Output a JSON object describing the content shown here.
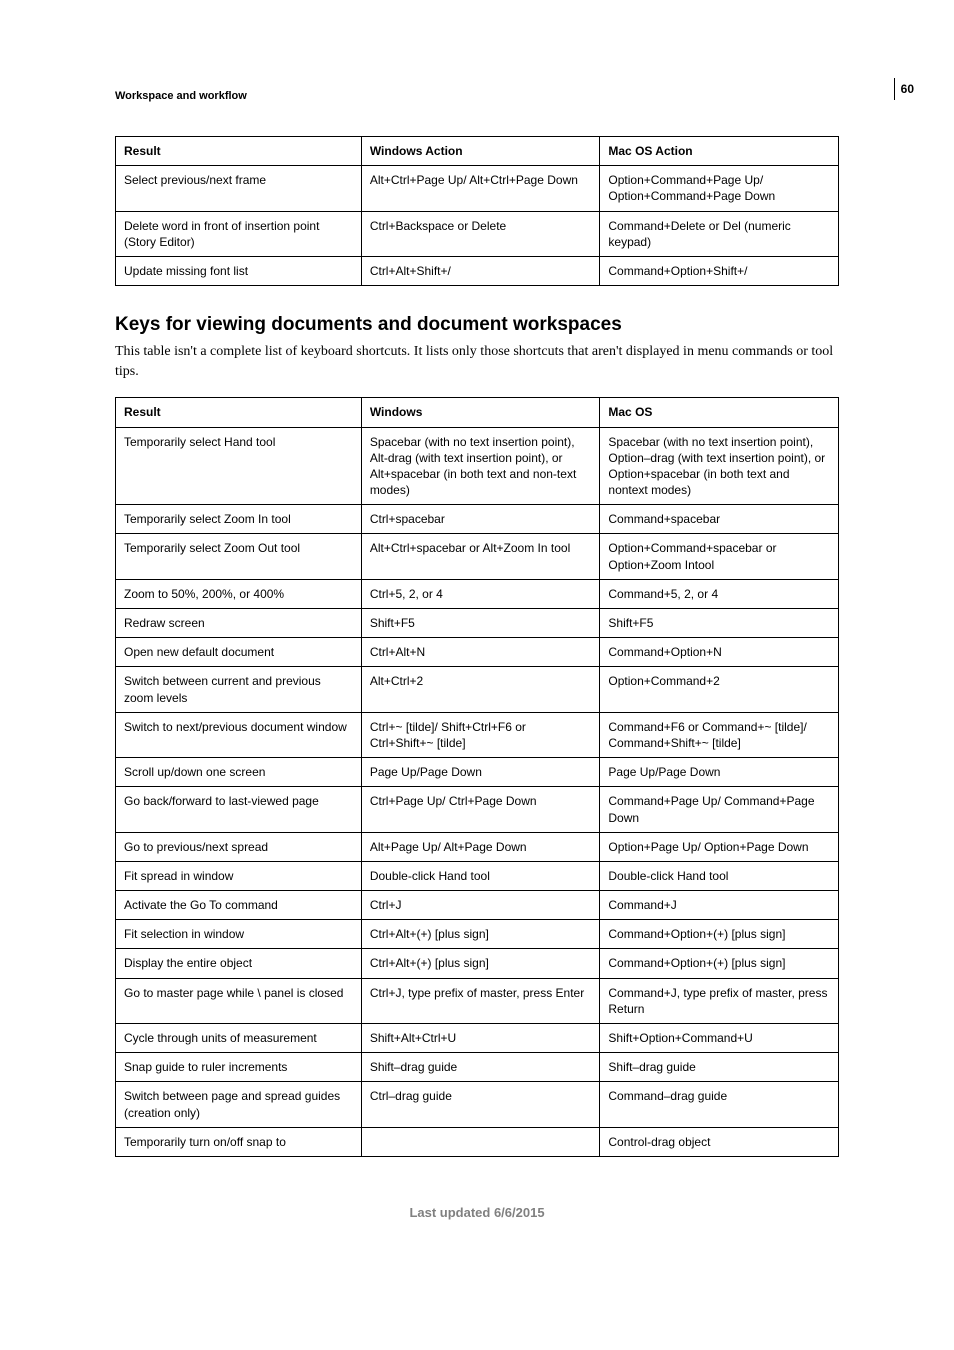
{
  "page_number": "60",
  "breadcrumb": "Workspace and workflow",
  "section_title": "Keys for viewing documents and document workspaces",
  "intro_text": "This table isn't a complete list of keyboard shortcuts. It lists only those shortcuts that aren't displayed in menu commands or tool tips.",
  "footer": "Last updated 6/6/2015",
  "table1": {
    "headers": [
      "Result",
      "Windows Action",
      "Mac OS Action"
    ],
    "rows": [
      [
        "Select previous/next frame",
        "Alt+Ctrl+Page Up/ Alt+Ctrl+Page Down",
        "Option+Command+Page Up/ Option+Command+Page Down"
      ],
      [
        "Delete word in front of insertion point (Story Editor)",
        "Ctrl+Backspace or Delete",
        "Command+Delete or Del (numeric keypad)"
      ],
      [
        "Update missing font list",
        "Ctrl+Alt+Shift+/",
        "Command+Option+Shift+/"
      ]
    ]
  },
  "table2": {
    "headers": [
      "Result",
      "Windows",
      "Mac OS"
    ],
    "rows": [
      [
        "Temporarily select Hand tool",
        "Spacebar (with no text insertion point), Alt-drag (with text insertion point), or Alt+spacebar (in both text and non-text modes)",
        "Spacebar (with no text insertion point), Option–drag (with text insertion point), or Option+spacebar (in both text and nontext modes)"
      ],
      [
        "Temporarily select Zoom In tool",
        "Ctrl+spacebar",
        "Command+spacebar"
      ],
      [
        "Temporarily select Zoom Out tool",
        "Alt+Ctrl+spacebar or Alt+Zoom In tool",
        "Option+Command+spacebar or Option+Zoom Intool"
      ],
      [
        "Zoom to 50%, 200%, or 400%",
        "Ctrl+5, 2, or 4",
        "Command+5, 2, or 4"
      ],
      [
        "Redraw screen",
        "Shift+F5",
        "Shift+F5"
      ],
      [
        "Open new default document",
        "Ctrl+Alt+N",
        "Command+Option+N"
      ],
      [
        "Switch between current and previous zoom levels",
        "Alt+Ctrl+2",
        "Option+Command+2"
      ],
      [
        "Switch to next/previous document window",
        "Ctrl+~ [tilde]/ Shift+Ctrl+F6 or Ctrl+Shift+~ [tilde]",
        "Command+F6 or Command+~ [tilde]/ Command+Shift+~ [tilde]"
      ],
      [
        "Scroll up/down one screen",
        "Page Up/Page Down",
        "Page Up/Page Down"
      ],
      [
        "Go back/forward to last-viewed page",
        "Ctrl+Page Up/ Ctrl+Page Down",
        "Command+Page Up/ Command+Page Down"
      ],
      [
        "Go to previous/next spread",
        "Alt+Page Up/ Alt+Page Down",
        "Option+Page Up/ Option+Page Down"
      ],
      [
        "Fit spread in window",
        "Double-click Hand tool",
        "Double-click Hand tool"
      ],
      [
        "Activate the Go To command",
        "Ctrl+J",
        "Command+J"
      ],
      [
        "Fit selection in window",
        "Ctrl+Alt+(+) [plus sign]",
        "Command+Option+(+) [plus sign]"
      ],
      [
        "Display the entire object",
        "Ctrl+Alt+(+) [plus sign]",
        "Command+Option+(+) [plus sign]"
      ],
      [
        "Go to master page while \\ panel is closed",
        "Ctrl+J, type prefix of master, press Enter",
        "Command+J, type prefix of master, press Return"
      ],
      [
        "Cycle through units of measurement",
        "Shift+Alt+Ctrl+U",
        "Shift+Option+Command+U"
      ],
      [
        "Snap guide to ruler increments",
        "Shift–drag guide",
        "Shift–drag guide"
      ],
      [
        "Switch between page and spread guides (creation only)",
        "Ctrl–drag guide",
        "Command–drag guide"
      ],
      [
        "Temporarily turn on/off snap to",
        "",
        "Control-drag object"
      ]
    ]
  }
}
